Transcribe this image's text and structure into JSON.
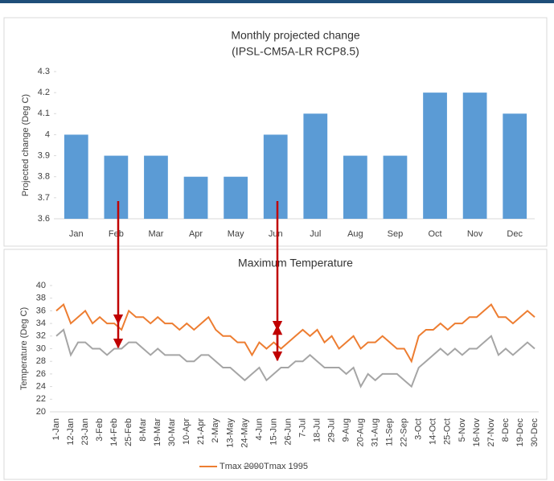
{
  "chart_data": [
    {
      "type": "bar",
      "title": "Monthly projected change",
      "subtitle": "(IPSL-CM5A-LR RCP8.5)",
      "y_label": "Projected change (Deg C)",
      "categories": [
        "Jan",
        "Feb",
        "Mar",
        "Apr",
        "May",
        "Jun",
        "Jul",
        "Aug",
        "Sep",
        "Oct",
        "Nov",
        "Dec"
      ],
      "values": [
        4,
        3.9,
        3.9,
        3.8,
        3.8,
        4,
        4.1,
        3.9,
        3.9,
        4.2,
        4.2,
        4.1
      ],
      "color": "#5b9bd5",
      "ylim": [
        3.6,
        4.3
      ],
      "yticks": [
        3.6,
        3.7,
        3.8,
        3.9,
        4,
        4.1,
        4.2,
        4.3
      ],
      "grid": false
    },
    {
      "type": "line",
      "title": "Maximum Temperature",
      "y_label": "Temperature (Deg C)",
      "categories": [
        "1-Jan",
        null,
        "12-Jan",
        null,
        "23-Jan",
        null,
        "3-Feb",
        null,
        "14-Feb",
        null,
        "25-Feb",
        null,
        "8-Mar",
        null,
        "19-Mar",
        null,
        "30-Mar",
        null,
        "10-Apr",
        null,
        "21-Apr",
        null,
        "2-May",
        null,
        "13-May",
        null,
        "24-May",
        null,
        "4-Jun",
        null,
        "15-Jun",
        null,
        "26-Jun",
        null,
        "7-Jul",
        null,
        "18-Jul",
        null,
        "29-Jul",
        null,
        "9-Aug",
        null,
        "20-Aug",
        null,
        "31-Aug",
        null,
        "11-Sep",
        null,
        "22-Sep",
        null,
        "3-Oct",
        null,
        "14-Oct",
        null,
        "25-Oct",
        null,
        "5-Nov",
        null,
        "16-Nov",
        null,
        "27-Nov",
        null,
        "8-Dec",
        null,
        "19-Dec",
        null,
        "30-Dec"
      ],
      "series": [
        {
          "name": "Tmax 2090",
          "color": "#ed7d31",
          "values": [
            36,
            37,
            34,
            35,
            36,
            34,
            35,
            34,
            34,
            33,
            36,
            35,
            35,
            34,
            35,
            34,
            34,
            33,
            34,
            33,
            34,
            35,
            33,
            32,
            32,
            31,
            31,
            29,
            31,
            30,
            31,
            30,
            31,
            32,
            33,
            32,
            33,
            31,
            32,
            30,
            31,
            32,
            30,
            31,
            31,
            32,
            31,
            30,
            30,
            28,
            32,
            33,
            33,
            34,
            33,
            34,
            34,
            35,
            35,
            36,
            37,
            35,
            35,
            34,
            35,
            36,
            35
          ]
        },
        {
          "name": "Tmax 1995",
          "color": "#a5a5a5",
          "values": [
            32,
            33,
            29,
            31,
            31,
            30,
            30,
            29,
            30,
            30,
            31,
            31,
            30,
            29,
            30,
            29,
            29,
            29,
            28,
            28,
            29,
            29,
            28,
            27,
            27,
            26,
            25,
            26,
            27,
            25,
            26,
            27,
            27,
            28,
            28,
            29,
            28,
            27,
            27,
            27,
            26,
            27,
            24,
            26,
            25,
            26,
            26,
            26,
            25,
            24,
            27,
            28,
            29,
            30,
            29,
            30,
            29,
            30,
            30,
            31,
            32,
            29,
            30,
            29,
            30,
            31,
            30
          ]
        }
      ],
      "ylim": [
        20,
        40
      ],
      "yticks": [
        20,
        22,
        24,
        26,
        28,
        30,
        32,
        34,
        36,
        38,
        40
      ],
      "grid": false,
      "legend": "bottom"
    }
  ]
}
